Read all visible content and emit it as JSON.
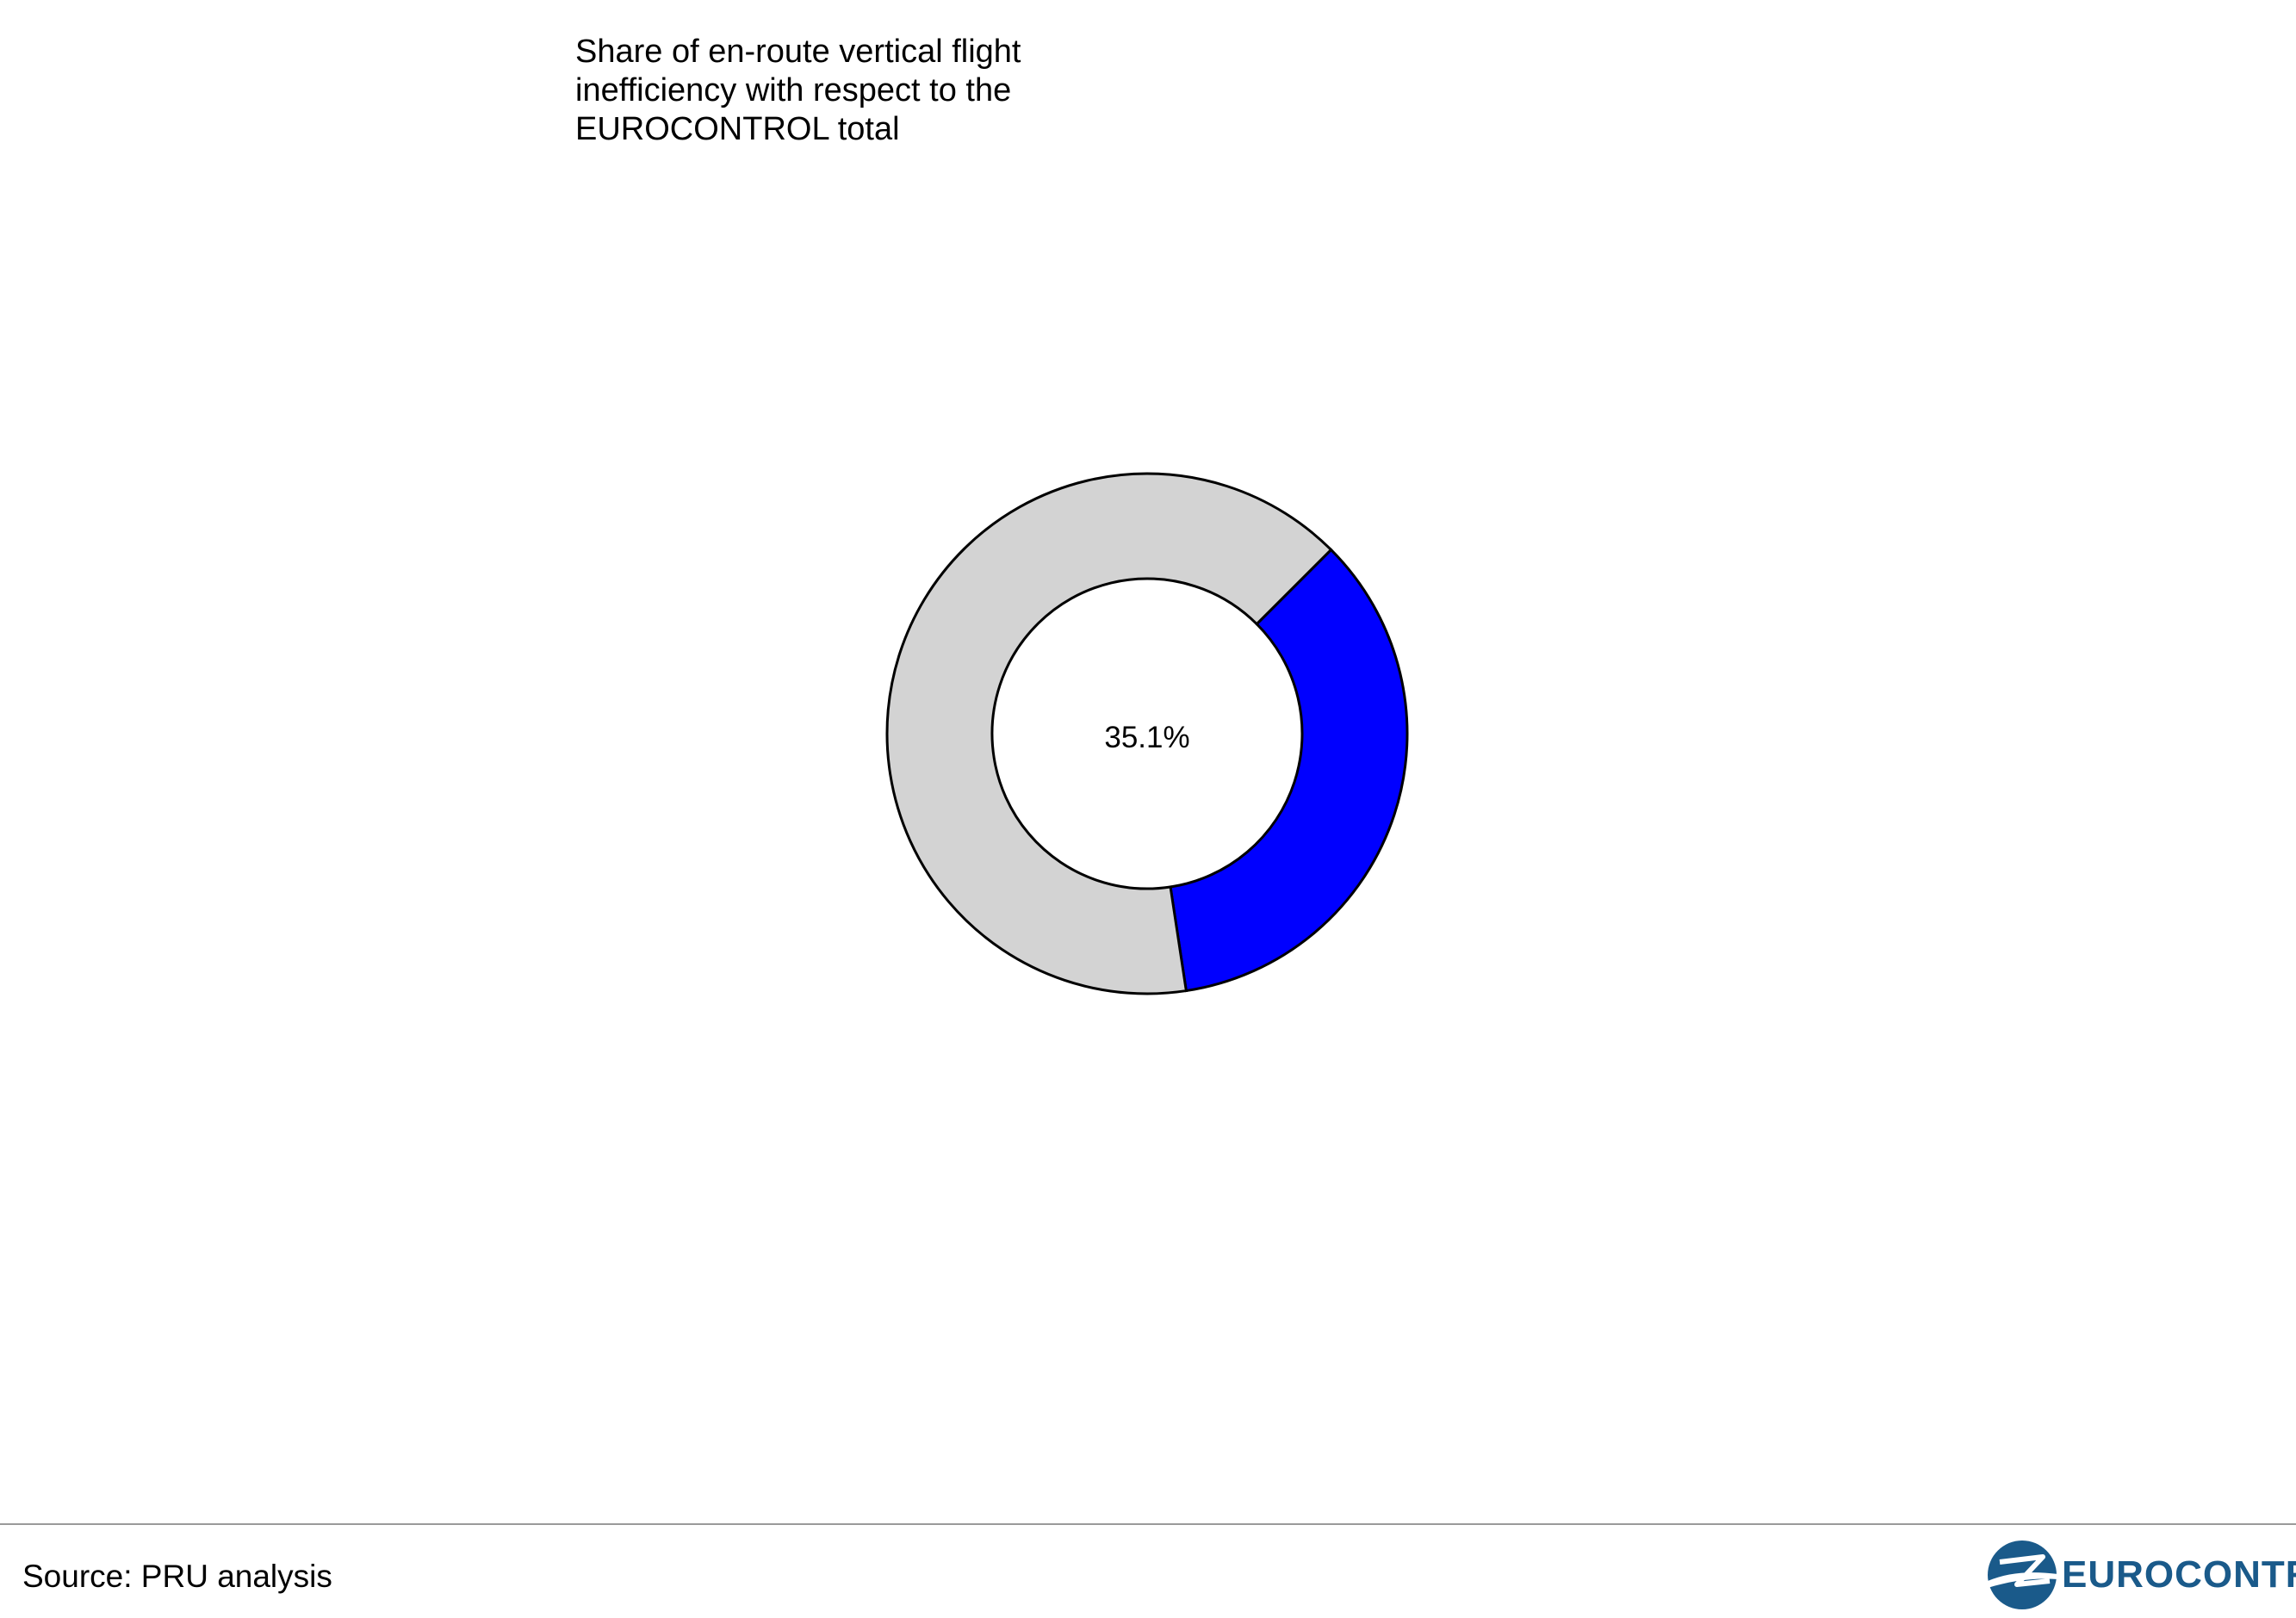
{
  "chart_data": {
    "type": "pie",
    "variant": "donut",
    "title": "Share of en-route vertical flight\ninefficiency with respect to the\nEUROCONTROL total",
    "slices": [
      {
        "label": "",
        "value": 35.1,
        "color": "#0000ff"
      },
      {
        "label": "",
        "value": 64.9,
        "color": "#d3d3d3"
      }
    ],
    "center_label": "35.1%",
    "legend": "none"
  },
  "footer": {
    "source": "Source: PRU analysis",
    "logo_text": "EUROCONTROL",
    "logo_color": "#1a5a8a"
  }
}
